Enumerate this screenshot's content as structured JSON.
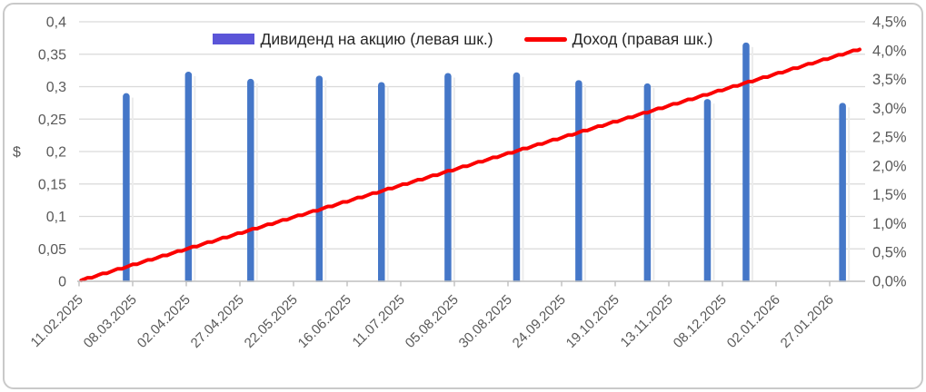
{
  "legend": {
    "items": [
      {
        "label": "Дивиденд на акцию (левая шк.)",
        "swatch": "bar",
        "color": "#5B55D8"
      },
      {
        "label": "Доход (правая шк.)",
        "swatch": "line",
        "color": "#FB0000"
      }
    ]
  },
  "chart_data": {
    "type": "combo",
    "grid": "horizontal-only",
    "legend_position": "top-center",
    "x_axis": {
      "type": "date",
      "interval_days": 25,
      "labels": [
        "11.02.2025",
        "08.03.2025",
        "02.04.2025",
        "27.04.2025",
        "22.05.2025",
        "16.06.2025",
        "11.07.2025",
        "05.08.2025",
        "30.08.2025",
        "24.09.2025",
        "19.10.2025",
        "13.11.2025",
        "08.12.2025",
        "02.01.2026",
        "27.01.2026"
      ]
    },
    "left_axis": {
      "unit": "$",
      "min": 0,
      "max": 0.4,
      "tick_values": [
        0,
        0.05,
        0.1,
        0.15,
        0.2,
        0.25,
        0.3,
        0.35,
        0.4
      ],
      "tick_labels": [
        "0",
        "0,05",
        "0,1",
        "0,15",
        "0,2",
        "0,25",
        "0,3",
        "0,35",
        "0,4"
      ]
    },
    "right_axis": {
      "min": 0,
      "max": 4.5,
      "tick_values": [
        0,
        0.5,
        1.0,
        1.5,
        2.0,
        2.5,
        3.0,
        3.5,
        4.0,
        4.5
      ],
      "tick_labels": [
        "0,0%",
        "0,5%",
        "1,0%",
        "1,5%",
        "2,0%",
        "2,5%",
        "3,0%",
        "3,5%",
        "4,0%",
        "4,5%"
      ]
    },
    "series": [
      {
        "name": "Дивиденд на акцию (левая шк.)",
        "type": "bar",
        "axis": "left",
        "color": "#4577C8",
        "points": [
          {
            "day": 22,
            "value": 0.29
          },
          {
            "day": 51,
            "value": 0.323
          },
          {
            "day": 80,
            "value": 0.312
          },
          {
            "day": 112,
            "value": 0.317
          },
          {
            "day": 141,
            "value": 0.307
          },
          {
            "day": 172,
            "value": 0.321
          },
          {
            "day": 204,
            "value": 0.322
          },
          {
            "day": 233,
            "value": 0.31
          },
          {
            "day": 265,
            "value": 0.305
          },
          {
            "day": 293,
            "value": 0.281
          },
          {
            "day": 311,
            "value": 0.368
          },
          {
            "day": 356,
            "value": 0.275
          }
        ]
      },
      {
        "name": "Доход (правая шк.)",
        "type": "line",
        "axis": "right",
        "color": "#FB0000",
        "start_pct": 0.0,
        "end_pct": 4.02,
        "accrual": "rises on weekdays, flat on weekends (stepped)",
        "pct_at_x_ticks": [
          0,
          0.28,
          0.55,
          0.83,
          1.1,
          1.38,
          1.66,
          1.93,
          2.21,
          2.48,
          2.76,
          3.04,
          3.31,
          3.59,
          3.87
        ]
      }
    ]
  },
  "colors": {
    "background": "#FFFFFF",
    "card_border": "#C9C9C9",
    "grid": "#D9D9D9",
    "axis": "#BFBFBF",
    "axis_text": "#595959",
    "legend_text": "#262626",
    "bar_shadow": "#ECECEC"
  }
}
